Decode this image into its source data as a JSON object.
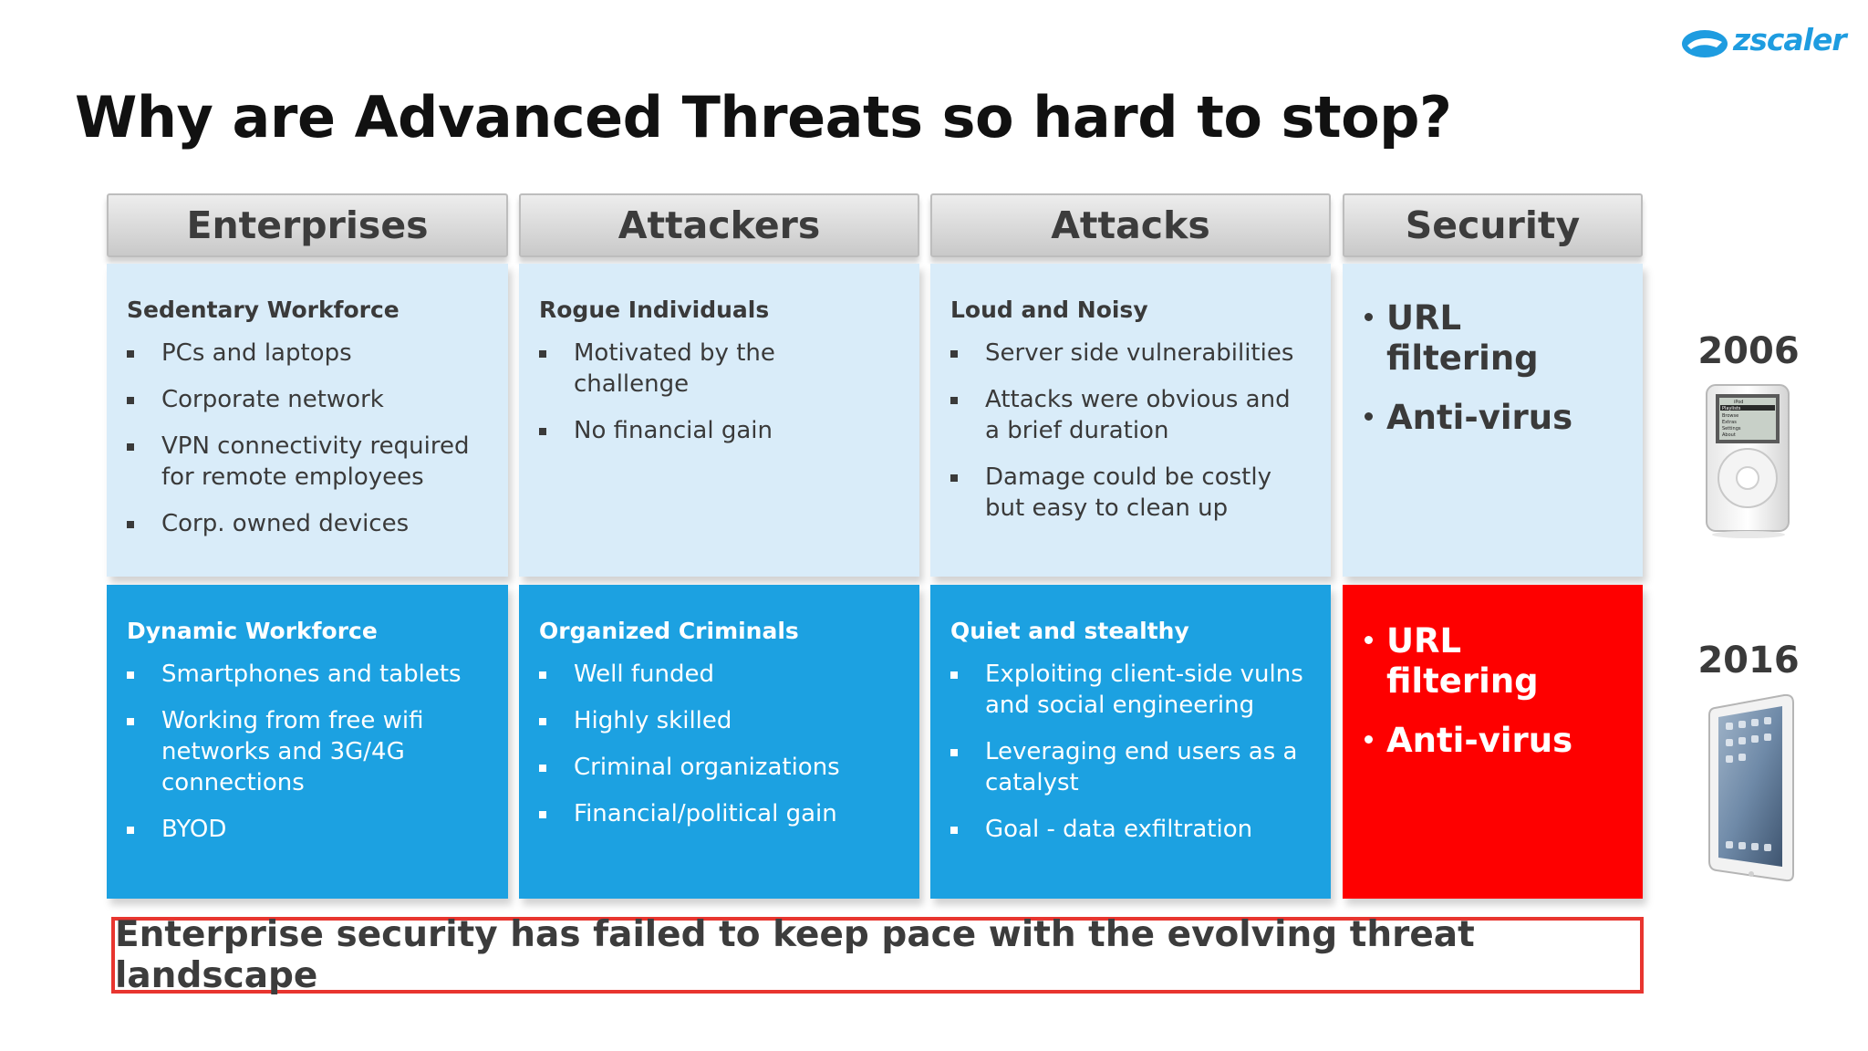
{
  "brand": {
    "logo_text": "zscaler",
    "color": "#1e9ce0"
  },
  "title": "Why are Advanced Threats so hard to stop?",
  "columns": [
    {
      "header": "Enterprises",
      "past": {
        "heading": "Sedentary Workforce",
        "items": [
          "PCs and laptops",
          "Corporate network",
          "VPN connectivity required for remote employees",
          "Corp. owned devices"
        ]
      },
      "present": {
        "heading": "Dynamic Workforce",
        "items": [
          "Smartphones and tablets",
          "Working from free wifi networks and 3G/4G connections",
          "BYOD"
        ]
      }
    },
    {
      "header": "Attackers",
      "past": {
        "heading": "Rogue Individuals",
        "items": [
          "Motivated by the challenge",
          "No financial gain"
        ]
      },
      "present": {
        "heading": "Organized Criminals",
        "items": [
          "Well funded",
          "Highly skilled",
          "Criminal organizations",
          "Financial/political gain"
        ]
      }
    },
    {
      "header": "Attacks",
      "past": {
        "heading": "Loud and Noisy",
        "items": [
          "Server side vulnerabilities",
          "Attacks were obvious and a brief duration",
          "Damage could be costly but easy to clean up"
        ]
      },
      "present": {
        "heading": "Quiet and stealthy",
        "items": [
          "Exploiting client-side vulns and social engineering",
          "Leveraging end users as a catalyst",
          "Goal - data exfiltration"
        ]
      }
    },
    {
      "header": "Security",
      "past": {
        "items": [
          "URL filtering",
          "Anti-virus"
        ]
      },
      "present": {
        "items": [
          "URL filtering",
          "Anti-virus"
        ]
      }
    }
  ],
  "timeline": [
    {
      "year": "2006",
      "device": "ipod-icon"
    },
    {
      "year": "2016",
      "device": "ipad-icon"
    }
  ],
  "ipod_screen_lines": [
    "iPod",
    "Playlists",
    "Browse",
    "Extras",
    "Settings",
    "About"
  ],
  "footer": "Enterprise security has failed to keep pace with the evolving threat landscape",
  "colors": {
    "light_cell": "#d9ecf9",
    "dark_cell": "#1ca1e1",
    "alert_cell": "#fe0000",
    "footer_border": "#e8352f"
  }
}
